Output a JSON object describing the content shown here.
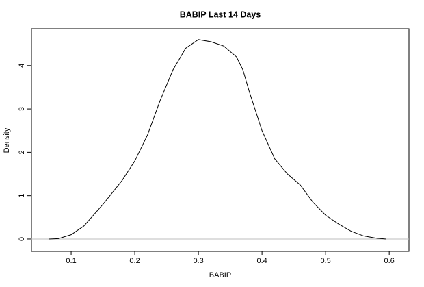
{
  "chart_data": {
    "type": "line",
    "title": "BABIP Last 14 Days",
    "x_label": "BABIP",
    "y_label": "Density",
    "x": [
      0.065,
      0.08,
      0.1,
      0.12,
      0.15,
      0.18,
      0.2,
      0.22,
      0.24,
      0.26,
      0.28,
      0.3,
      0.32,
      0.34,
      0.36,
      0.37,
      0.38,
      0.4,
      0.42,
      0.44,
      0.46,
      0.48,
      0.5,
      0.52,
      0.54,
      0.56,
      0.58,
      0.595
    ],
    "series": [
      {
        "color": "#000000",
        "values": [
          0,
          0.01,
          0.1,
          0.3,
          0.8,
          1.35,
          1.8,
          2.4,
          3.2,
          3.9,
          4.4,
          4.6,
          4.55,
          4.45,
          4.2,
          3.9,
          3.4,
          2.5,
          1.85,
          1.5,
          1.25,
          0.85,
          0.55,
          0.35,
          0.18,
          0.07,
          0.02,
          0
        ]
      }
    ],
    "xlim": [
      0.0376,
      0.631
    ],
    "ylim": [
      -0.285,
      4.85
    ],
    "xticks": [
      0.1,
      0.2,
      0.3,
      0.4,
      0.5,
      0.6
    ],
    "yticks": [
      0,
      1,
      2,
      3,
      4
    ],
    "zero_line": true,
    "zero_line_color": "#bebebe"
  }
}
